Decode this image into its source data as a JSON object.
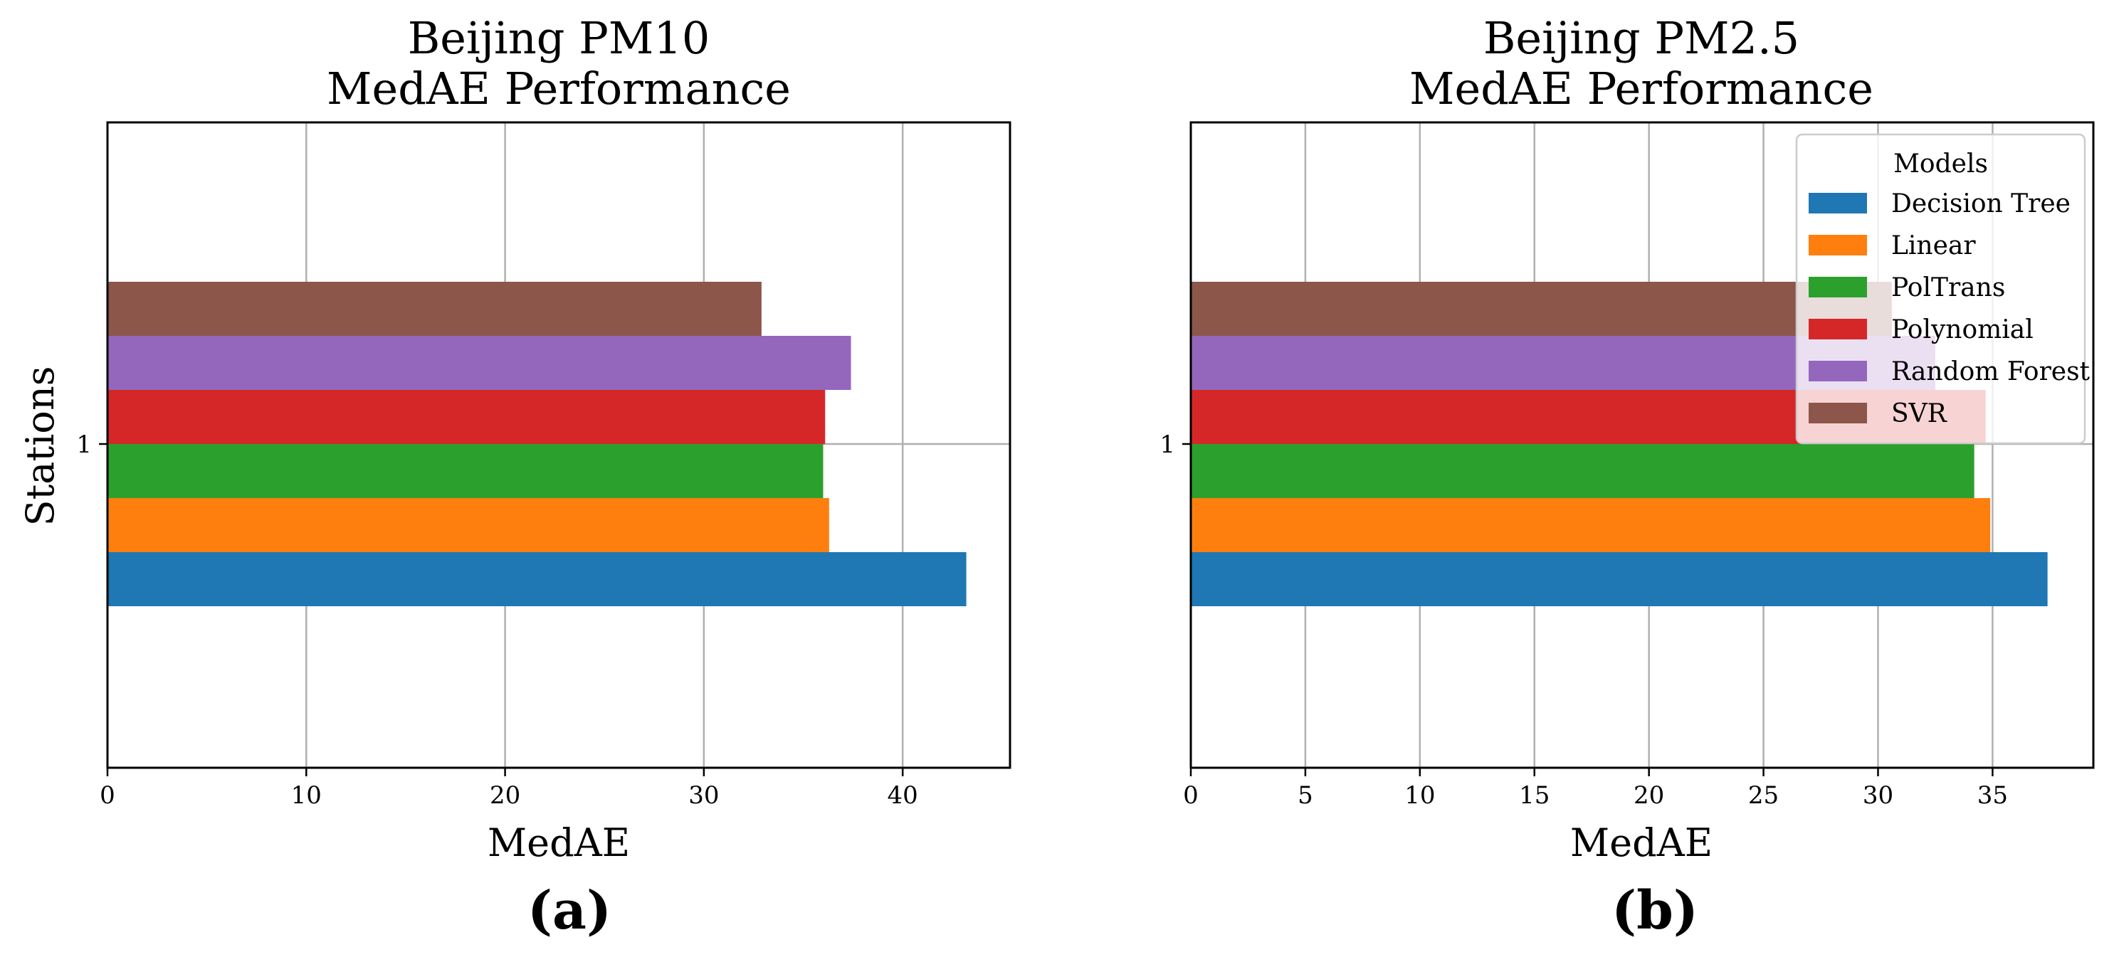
{
  "chart_data": [
    {
      "type": "bar",
      "orientation": "horizontal",
      "title": "Beijing PM10\nMedAE Performance",
      "xlabel": "MedAE",
      "ylabel": "Stations",
      "panel_label": "(a)",
      "categories": [
        "1"
      ],
      "xlim": [
        0,
        45.4
      ],
      "xticks": [
        0,
        10,
        20,
        30,
        40
      ],
      "grid": true,
      "series": [
        {
          "name": "Decision Tree",
          "values": [
            43.2
          ]
        },
        {
          "name": "Linear",
          "values": [
            36.3
          ]
        },
        {
          "name": "PolTrans",
          "values": [
            36.0
          ]
        },
        {
          "name": "Polynomial",
          "values": [
            36.1
          ]
        },
        {
          "name": "Random Forest",
          "values": [
            37.4
          ]
        },
        {
          "name": "SVR",
          "values": [
            32.9
          ]
        }
      ]
    },
    {
      "type": "bar",
      "orientation": "horizontal",
      "title": "Beijing PM2.5\nMedAE Performance",
      "xlabel": "MedAE",
      "ylabel": "",
      "panel_label": "(b)",
      "categories": [
        "1"
      ],
      "xlim": [
        0,
        39.4
      ],
      "xticks": [
        0,
        5,
        10,
        15,
        20,
        25,
        30,
        35
      ],
      "grid": true,
      "legend": {
        "title": "Models",
        "placement": "top-right"
      },
      "series": [
        {
          "name": "Decision Tree",
          "values": [
            37.4
          ]
        },
        {
          "name": "Linear",
          "values": [
            34.9
          ]
        },
        {
          "name": "PolTrans",
          "values": [
            34.2
          ]
        },
        {
          "name": "Polynomial",
          "values": [
            34.7
          ]
        },
        {
          "name": "Random Forest",
          "values": [
            32.5
          ]
        },
        {
          "name": "SVR",
          "values": [
            30.6
          ]
        }
      ]
    }
  ],
  "colors": {
    "Decision Tree": "#1f77b4",
    "Linear": "#ff7f0e",
    "PolTrans": "#2ca02c",
    "Polynomial": "#d62728",
    "Random Forest": "#9467bd",
    "SVR": "#8c564b"
  }
}
